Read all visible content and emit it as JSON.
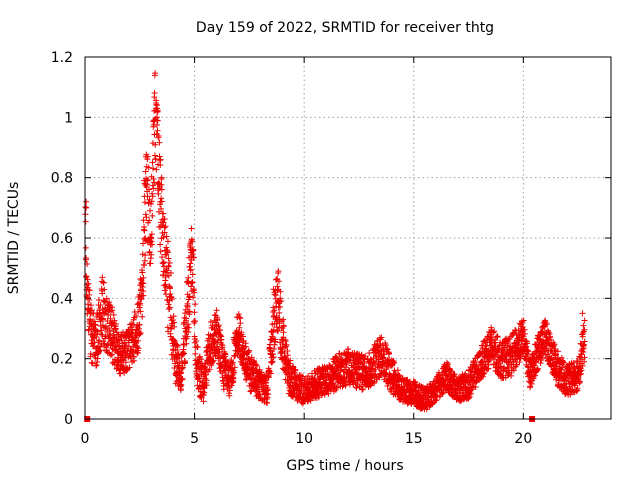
{
  "chart_data": {
    "type": "scatter",
    "title": "Day 159 of 2022, SRMTID for receiver thtg",
    "xlabel": "GPS time / hours",
    "ylabel": "SRMTID / TECUs",
    "xlim": [
      0,
      24
    ],
    "ylim": [
      0,
      1.2
    ],
    "xticks": [
      0,
      5,
      10,
      15,
      20
    ],
    "xtick_labels": [
      "0",
      "5",
      "10",
      "15",
      "20"
    ],
    "yticks": [
      0,
      0.2,
      0.4,
      0.6,
      0.8,
      1.0,
      1.2
    ],
    "ytick_labels": [
      "0",
      "0.2",
      "0.4",
      "0.6",
      "0.8",
      "1",
      "1.2"
    ],
    "grid": true,
    "marker_color": "#ee0000",
    "series": [
      {
        "name": "SRMTID",
        "marker": "plus",
        "envelope": {
          "x": [
            0.0,
            0.1,
            0.3,
            0.5,
            0.8,
            1.0,
            1.3,
            1.6,
            2.0,
            2.4,
            2.6,
            2.8,
            3.0,
            3.2,
            3.35,
            3.5,
            3.7,
            3.9,
            4.1,
            4.4,
            4.7,
            4.9,
            5.1,
            5.4,
            5.7,
            6.0,
            6.3,
            6.6,
            7.0,
            7.3,
            7.6,
            8.0,
            8.3,
            8.6,
            8.8,
            9.0,
            9.3,
            9.6,
            10.0,
            10.5,
            11.0,
            11.5,
            12.0,
            12.5,
            13.0,
            13.5,
            14.0,
            14.5,
            15.0,
            15.5,
            16.0,
            16.5,
            17.0,
            17.5,
            18.0,
            18.5,
            19.0,
            19.5,
            20.0,
            20.3,
            20.6,
            21.0,
            21.5,
            22.0,
            22.5,
            22.8
          ],
          "y": [
            0.72,
            0.42,
            0.28,
            0.25,
            0.38,
            0.32,
            0.28,
            0.22,
            0.24,
            0.3,
            0.45,
            0.78,
            0.62,
            1.03,
            0.85,
            0.65,
            0.48,
            0.42,
            0.2,
            0.16,
            0.4,
            0.56,
            0.18,
            0.12,
            0.25,
            0.3,
            0.18,
            0.12,
            0.3,
            0.2,
            0.15,
            0.12,
            0.1,
            0.3,
            0.42,
            0.28,
            0.15,
            0.12,
            0.1,
            0.12,
            0.13,
            0.16,
            0.18,
            0.16,
            0.17,
            0.22,
            0.15,
            0.1,
            0.09,
            0.07,
            0.1,
            0.15,
            0.1,
            0.12,
            0.18,
            0.25,
            0.2,
            0.22,
            0.28,
            0.15,
            0.22,
            0.28,
            0.18,
            0.13,
            0.16,
            0.27
          ]
        },
        "spread": [
          0.05,
          0.1,
          0.1,
          0.09,
          0.11,
          0.1,
          0.09,
          0.07,
          0.07,
          0.09,
          0.12,
          0.16,
          0.16,
          0.14,
          0.16,
          0.16,
          0.16,
          0.15,
          0.08,
          0.06,
          0.12,
          0.12,
          0.08,
          0.06,
          0.08,
          0.08,
          0.07,
          0.06,
          0.07,
          0.07,
          0.06,
          0.05,
          0.05,
          0.09,
          0.12,
          0.1,
          0.06,
          0.05,
          0.05,
          0.05,
          0.05,
          0.06,
          0.06,
          0.06,
          0.06,
          0.07,
          0.06,
          0.04,
          0.04,
          0.04,
          0.04,
          0.05,
          0.04,
          0.05,
          0.05,
          0.07,
          0.06,
          0.07,
          0.06,
          0.05,
          0.06,
          0.06,
          0.06,
          0.05,
          0.06,
          0.07
        ],
        "highlight": [
          {
            "x": 0.05,
            "y": 0.72
          },
          {
            "x": 0.05,
            "y": 0.7
          },
          {
            "x": 3.25,
            "y": 1.03
          },
          {
            "x": 3.3,
            "y": 1.02
          },
          {
            "x": 3.3,
            "y": 0.99
          },
          {
            "x": 3.4,
            "y": 0.87
          },
          {
            "x": 3.45,
            "y": 0.86
          },
          {
            "x": 2.7,
            "y": 0.79
          },
          {
            "x": 2.75,
            "y": 0.78
          },
          {
            "x": 3.5,
            "y": 0.8
          },
          {
            "x": 4.8,
            "y": 0.57
          },
          {
            "x": 4.85,
            "y": 0.56
          },
          {
            "x": 8.6,
            "y": 0.43
          },
          {
            "x": 8.65,
            "y": 0.42
          },
          {
            "x": 22.7,
            "y": 0.35
          }
        ]
      },
      {
        "name": "zero markers",
        "marker": "square",
        "points": [
          {
            "x": 0.1,
            "y": 0.0
          },
          {
            "x": 20.4,
            "y": 0.0
          }
        ]
      }
    ]
  }
}
